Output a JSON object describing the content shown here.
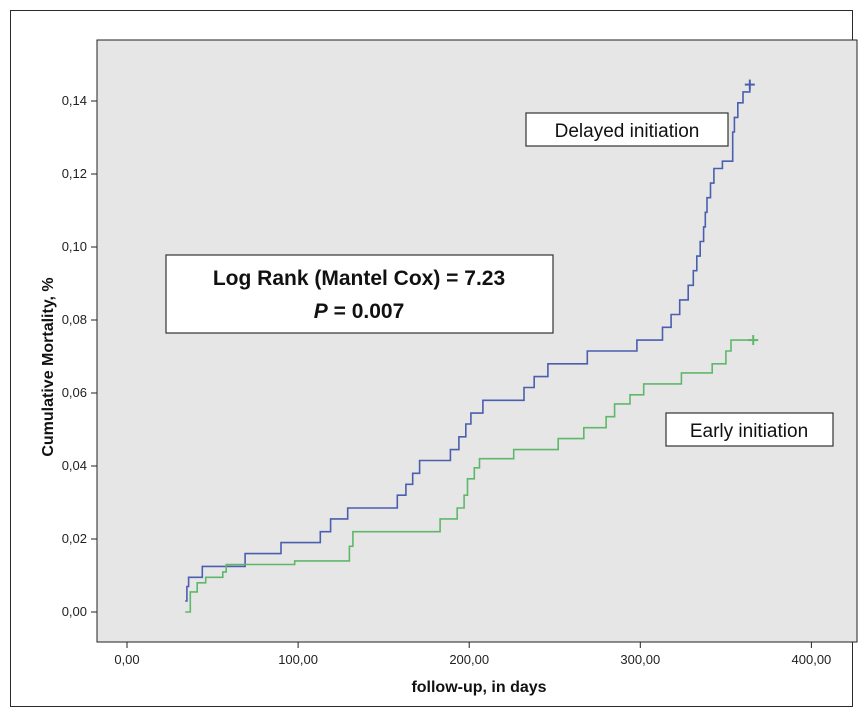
{
  "chart_data": {
    "type": "line",
    "xlabel": "follow-up, in days",
    "ylabel": "Cumulative Mortality, %",
    "xlim": [
      0,
      400
    ],
    "ylim": [
      0,
      0.14
    ],
    "x_ticks": [
      "0,00",
      "100,00",
      "200,00",
      "300,00",
      "400,00"
    ],
    "x_tick_values": [
      0,
      100,
      200,
      300,
      400
    ],
    "y_ticks": [
      "0,00",
      "0,02",
      "0,04",
      "0,06",
      "0,08",
      "0,10",
      "0,12",
      "0,14"
    ],
    "y_tick_values": [
      0,
      0.02,
      0.04,
      0.06,
      0.08,
      0.1,
      0.12,
      0.14
    ],
    "grid": false,
    "background_color": "#e6e6e6",
    "annotation": {
      "line1": "Log Rank (Mantel Cox) = 7.23",
      "p_label": "P",
      "p_value": "= 0.007"
    },
    "series": [
      {
        "name": "Delayed initiation",
        "color": "#4a5fae",
        "censor_marker": "+",
        "points": [
          [
            34,
            0.003
          ],
          [
            35,
            0.007
          ],
          [
            36,
            0.0095
          ],
          [
            44,
            0.0125
          ],
          [
            57,
            0.0125
          ],
          [
            69,
            0.016
          ],
          [
            90,
            0.019
          ],
          [
            113,
            0.022
          ],
          [
            119,
            0.0255
          ],
          [
            129,
            0.0285
          ],
          [
            158,
            0.032
          ],
          [
            163,
            0.035
          ],
          [
            167,
            0.038
          ],
          [
            171,
            0.0415
          ],
          [
            189,
            0.0445
          ],
          [
            194,
            0.048
          ],
          [
            198,
            0.0515
          ],
          [
            201,
            0.0545
          ],
          [
            208,
            0.058
          ],
          [
            232,
            0.0615
          ],
          [
            238,
            0.0645
          ],
          [
            246,
            0.068
          ],
          [
            269,
            0.0715
          ],
          [
            298,
            0.0745
          ],
          [
            313,
            0.078
          ],
          [
            318,
            0.0815
          ],
          [
            323,
            0.0855
          ],
          [
            328,
            0.0895
          ],
          [
            331,
            0.0935
          ],
          [
            333,
            0.0975
          ],
          [
            335,
            0.1015
          ],
          [
            337,
            0.1055
          ],
          [
            338,
            0.1095
          ],
          [
            339,
            0.1135
          ],
          [
            341,
            0.1175
          ],
          [
            343,
            0.1215
          ],
          [
            348,
            0.1235
          ],
          [
            354,
            0.1315
          ],
          [
            355,
            0.1355
          ],
          [
            357,
            0.1395
          ],
          [
            360,
            0.1425
          ],
          [
            364,
            0.1445
          ]
        ]
      },
      {
        "name": "Early initiation",
        "color": "#5fb86a",
        "censor_marker": "+",
        "points": [
          [
            34,
            0.0
          ],
          [
            37,
            0.0055
          ],
          [
            41,
            0.008
          ],
          [
            46,
            0.0095
          ],
          [
            56,
            0.011
          ],
          [
            58,
            0.013
          ],
          [
            98,
            0.014
          ],
          [
            130,
            0.018
          ],
          [
            132,
            0.022
          ],
          [
            183,
            0.0255
          ],
          [
            193,
            0.0285
          ],
          [
            197,
            0.032
          ],
          [
            199,
            0.0365
          ],
          [
            203,
            0.0395
          ],
          [
            206,
            0.042
          ],
          [
            226,
            0.0445
          ],
          [
            252,
            0.0475
          ],
          [
            267,
            0.0505
          ],
          [
            280,
            0.0535
          ],
          [
            285,
            0.057
          ],
          [
            294,
            0.0595
          ],
          [
            302,
            0.0625
          ],
          [
            324,
            0.0655
          ],
          [
            342,
            0.068
          ],
          [
            350,
            0.0715
          ],
          [
            353,
            0.0745
          ],
          [
            366,
            0.0745
          ]
        ]
      }
    ]
  }
}
